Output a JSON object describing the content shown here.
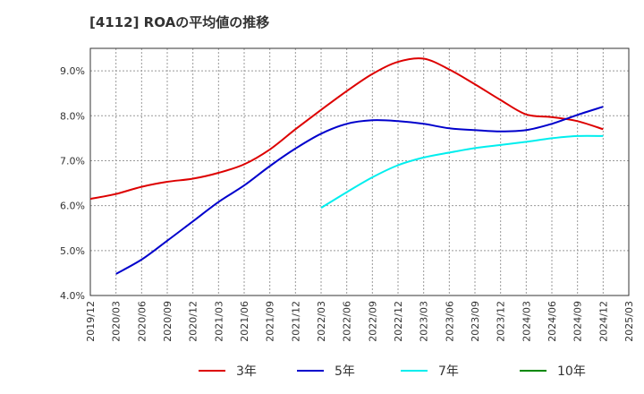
{
  "chart_data": {
    "type": "line",
    "title": "[4112]  ROAの平均値の推移",
    "xlabel": "",
    "ylabel": "",
    "ylim": [
      4.0,
      9.5
    ],
    "y_ticks": [
      "4.0%",
      "5.0%",
      "6.0%",
      "7.0%",
      "8.0%",
      "9.0%"
    ],
    "y_tick_values": [
      4,
      5,
      6,
      7,
      8,
      9
    ],
    "x_ticks": [
      "2019/12",
      "2020/03",
      "2020/06",
      "2020/09",
      "2020/12",
      "2021/03",
      "2021/06",
      "2021/09",
      "2021/12",
      "2022/03",
      "2022/06",
      "2022/09",
      "2022/12",
      "2023/03",
      "2023/06",
      "2023/09",
      "2023/12",
      "2024/03",
      "2024/06",
      "2024/09",
      "2024/12",
      "2025/03"
    ],
    "grid": true,
    "legend_position": "bottom",
    "series": [
      {
        "name": "3年",
        "color": "#dd0000",
        "values": [
          6.15,
          6.26,
          6.42,
          6.53,
          6.6,
          6.73,
          6.92,
          7.25,
          7.7,
          8.13,
          8.55,
          8.93,
          9.2,
          9.27,
          9.03,
          8.7,
          8.35,
          8.03,
          7.97,
          7.88,
          7.7,
          null
        ]
      },
      {
        "name": "5年",
        "color": "#0000cc",
        "values": [
          null,
          4.48,
          4.8,
          5.22,
          5.65,
          6.08,
          6.45,
          6.88,
          7.27,
          7.6,
          7.82,
          7.9,
          7.88,
          7.82,
          7.72,
          7.68,
          7.65,
          7.68,
          7.82,
          8.02,
          8.2,
          null
        ]
      },
      {
        "name": "7年",
        "color": "#00eeee",
        "values": [
          null,
          null,
          null,
          null,
          null,
          null,
          null,
          null,
          null,
          5.95,
          6.3,
          6.63,
          6.9,
          7.07,
          7.18,
          7.28,
          7.35,
          7.42,
          7.5,
          7.55,
          7.55,
          null
        ]
      },
      {
        "name": "10年",
        "color": "#008800",
        "values": [
          null,
          null,
          null,
          null,
          null,
          null,
          null,
          null,
          null,
          null,
          null,
          null,
          null,
          null,
          null,
          null,
          null,
          null,
          null,
          null,
          null,
          null
        ]
      }
    ]
  }
}
